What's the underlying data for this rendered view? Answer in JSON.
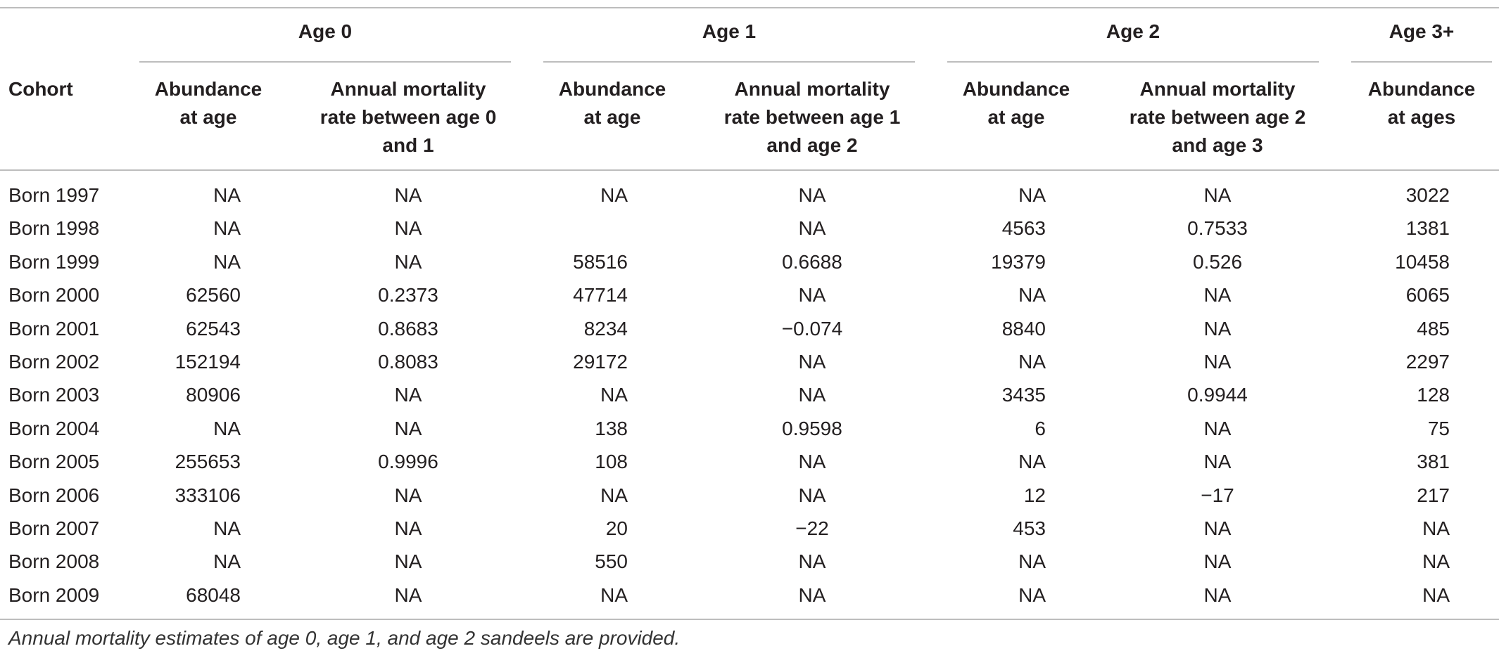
{
  "table": {
    "groups": [
      "Age 0",
      "Age 1",
      "Age 2",
      "Age 3+"
    ],
    "cohort_header": "Cohort",
    "subheaders": [
      [
        "Abundance",
        "at age"
      ],
      [
        "Annual mortality",
        "rate between age 0",
        "and 1"
      ],
      [
        "Abundance",
        "at age"
      ],
      [
        "Annual mortality",
        "rate between age 1",
        "and age 2"
      ],
      [
        "Abundance",
        "at age"
      ],
      [
        "Annual mortality",
        "rate between age 2",
        "and age 3"
      ],
      [
        "Abundance",
        "at ages"
      ]
    ],
    "rows": [
      [
        "Born 1997",
        "NA",
        "NA",
        "NA",
        "NA",
        "NA",
        "NA",
        "3022"
      ],
      [
        "Born 1998",
        "NA",
        "NA",
        "",
        "NA",
        "4563",
        "0.7533",
        "1381"
      ],
      [
        "Born 1999",
        "NA",
        "NA",
        "58516",
        "0.6688",
        "19379",
        "0.526",
        "10458"
      ],
      [
        "Born 2000",
        "62560",
        "0.2373",
        "47714",
        "NA",
        "NA",
        "NA",
        "6065"
      ],
      [
        "Born 2001",
        "62543",
        "0.8683",
        "8234",
        "−0.074",
        "8840",
        "NA",
        "485"
      ],
      [
        "Born 2002",
        "152194",
        "0.8083",
        "29172",
        "NA",
        "NA",
        "NA",
        "2297"
      ],
      [
        "Born 2003",
        "80906",
        "NA",
        "NA",
        "NA",
        "3435",
        "0.9944",
        "128"
      ],
      [
        "Born 2004",
        "NA",
        "NA",
        "138",
        "0.9598",
        "6",
        "NA",
        "75"
      ],
      [
        "Born 2005",
        "255653",
        "0.9996",
        "108",
        "NA",
        "NA",
        "NA",
        "381"
      ],
      [
        "Born 2006",
        "333106",
        "NA",
        "NA",
        "NA",
        "12",
        "−17",
        "217"
      ],
      [
        "Born 2007",
        "NA",
        "NA",
        "20",
        "−22",
        "453",
        "NA",
        "NA"
      ],
      [
        "Born 2008",
        "NA",
        "NA",
        "550",
        "NA",
        "NA",
        "NA",
        "NA"
      ],
      [
        "Born 2009",
        "68048",
        "NA",
        "NA",
        "NA",
        "NA",
        "NA",
        "NA"
      ]
    ]
  },
  "footnote": "Annual mortality estimates of age 0, age 1, and age 2 sandeels are provided."
}
